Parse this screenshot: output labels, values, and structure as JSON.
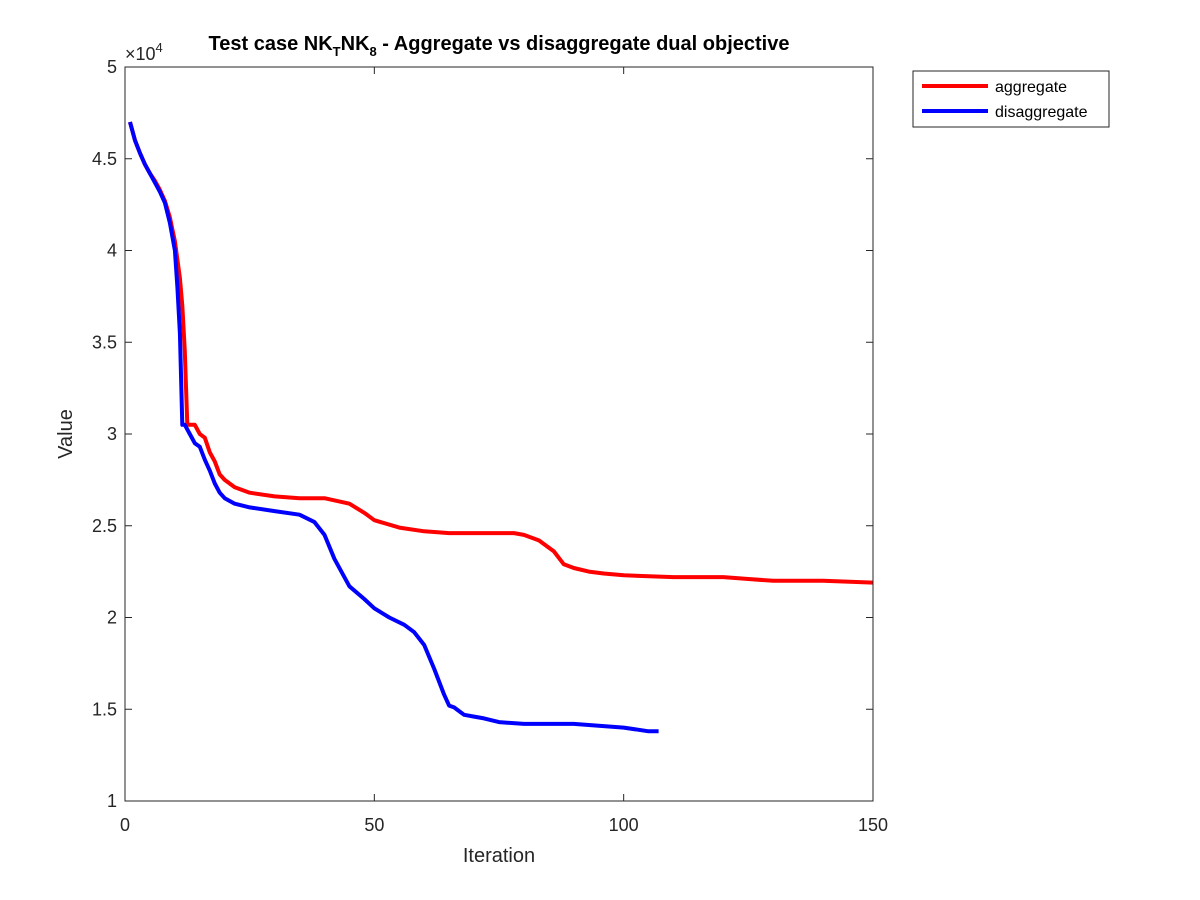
{
  "chart_data": {
    "type": "line",
    "title": {
      "prefix": "Test case NK",
      "sub1": "T",
      "middle": "NK",
      "sub2": "8",
      "suffix": " - Aggregate vs disaggregate dual objective"
    },
    "xlabel": "Iteration",
    "ylabel": "Value",
    "xlim": [
      0,
      150
    ],
    "ylim": [
      10000,
      50000
    ],
    "x_ticks": [
      0,
      50,
      100,
      150
    ],
    "x_tick_labels": [
      "0",
      "50",
      "100",
      "150"
    ],
    "y_ticks": [
      10000,
      15000,
      20000,
      25000,
      30000,
      35000,
      40000,
      45000,
      50000
    ],
    "y_tick_labels": [
      "1",
      "1.5",
      "2",
      "2.5",
      "3",
      "3.5",
      "4",
      "4.5",
      "5"
    ],
    "y_exponent": {
      "base": "×10",
      "power": "4"
    },
    "grid": false,
    "legend_position": "outside-top-right",
    "series": [
      {
        "name": "aggregate",
        "color": "#ff0000",
        "x": [
          1,
          2,
          3,
          4,
          5,
          6,
          7,
          8,
          9,
          10,
          11,
          11.5,
          12,
          12.5,
          13,
          14,
          15,
          16,
          17,
          18,
          19,
          20,
          22,
          25,
          30,
          35,
          40,
          45,
          48,
          50,
          55,
          60,
          65,
          70,
          75,
          78,
          80,
          83,
          86,
          88,
          90,
          93,
          96,
          100,
          110,
          120,
          125,
          130,
          140,
          150
        ],
        "y": [
          47000,
          46000,
          45300,
          44700,
          44200,
          43800,
          43300,
          42700,
          41800,
          40500,
          38500,
          37000,
          34500,
          30500,
          30500,
          30500,
          30000,
          29800,
          29000,
          28500,
          27800,
          27500,
          27100,
          26800,
          26600,
          26500,
          26500,
          26200,
          25700,
          25300,
          24900,
          24700,
          24600,
          24600,
          24600,
          24600,
          24500,
          24200,
          23600,
          22900,
          22700,
          22500,
          22400,
          22300,
          22200,
          22200,
          22100,
          22000,
          22000,
          21900
        ]
      },
      {
        "name": "disaggregate",
        "color": "#0000ff",
        "x": [
          1,
          2,
          3,
          4,
          5,
          6,
          7,
          8,
          9,
          10,
          10.5,
          11,
          11.5,
          12,
          13,
          14,
          15,
          16,
          17,
          18,
          19,
          20,
          22,
          25,
          30,
          35,
          38,
          40,
          42,
          45,
          48,
          50,
          53,
          56,
          58,
          60,
          62,
          64,
          65,
          66,
          67,
          68,
          70,
          72,
          75,
          80,
          90,
          95,
          100,
          105,
          107
        ],
        "y": [
          47000,
          46000,
          45300,
          44700,
          44200,
          43700,
          43200,
          42600,
          41500,
          40000,
          38000,
          35500,
          30500,
          30500,
          30000,
          29500,
          29300,
          28600,
          28000,
          27300,
          26800,
          26500,
          26200,
          26000,
          25800,
          25600,
          25200,
          24500,
          23200,
          21700,
          21000,
          20500,
          20000,
          19600,
          19200,
          18500,
          17200,
          15800,
          15200,
          15100,
          14900,
          14700,
          14600,
          14500,
          14300,
          14200,
          14200,
          14100,
          14000,
          13800,
          13800
        ]
      }
    ]
  }
}
